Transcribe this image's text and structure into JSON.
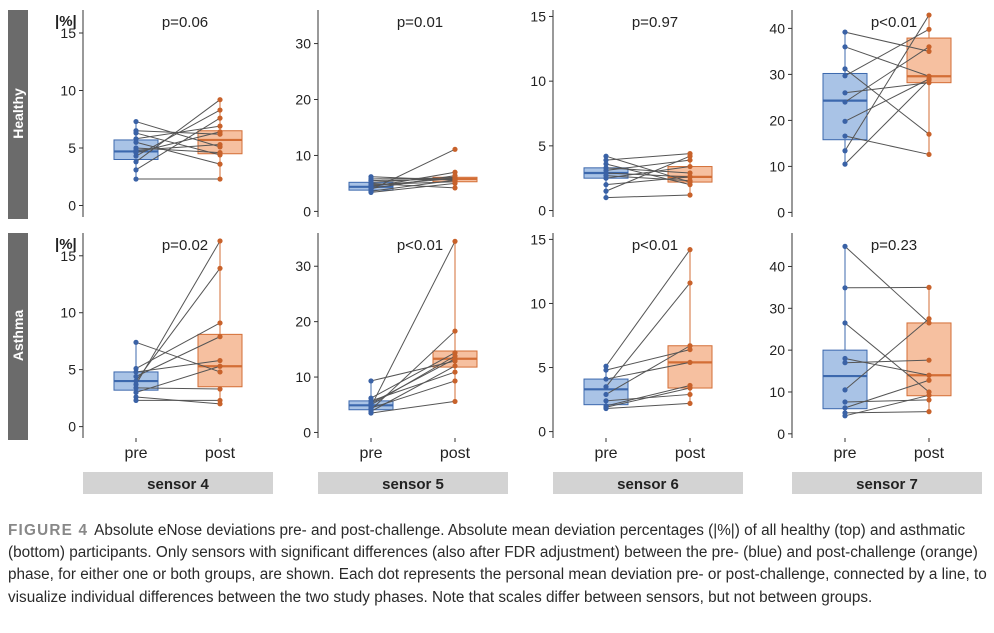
{
  "figure": {
    "row_labels": [
      "Healthy",
      "Asthma"
    ],
    "y_unit_label": "|%|",
    "x_tick_labels": [
      "pre",
      "post"
    ],
    "colors": {
      "pre_fill": "#a9c3e6",
      "pre_stroke": "#3c68ad",
      "pre_point": "#3a62a6",
      "post_fill": "#f6c0a0",
      "post_stroke": "#d36e36",
      "post_point": "#c8622b",
      "pair_line": "#555555",
      "row_strip": "#6b6b6b",
      "sensor_strip": "#d3d3d3"
    }
  },
  "caption": {
    "label": "FIGURE 4",
    "text": "Absolute eNose deviations pre- and post-challenge. Absolute mean deviation percentages (|%|) of all healthy (top) and asthmatic (bottom) participants. Only sensors with significant differences (also after FDR adjustment) between the pre- (blue) and post-challenge (orange) phase, for either one or both groups, are shown. Each dot represents the personal mean deviation pre- or post-challenge, connected by a line, to visualize individual differences between the two study phases. Note that scales differ between sensors, but not between groups."
  },
  "chart_data": [
    {
      "type": "box",
      "sensor": "sensor 4",
      "group": "Healthy",
      "pvalue": "p=0.06",
      "show_unit_label": true,
      "ylim": [
        -1,
        17
      ],
      "yticks": [
        0,
        5,
        10,
        15
      ],
      "pre": {
        "q1": 4.0,
        "median": 4.7,
        "q3": 5.7,
        "whisker_low": 2.3,
        "whisker_high": 7.3
      },
      "post": {
        "q1": 4.5,
        "median": 5.7,
        "q3": 6.5,
        "whisker_low": 2.3,
        "whisker_high": 9.2
      },
      "pairs": [
        [
          7.3,
          5.1
        ],
        [
          6.5,
          6.2
        ],
        [
          6.3,
          4.4
        ],
        [
          5.8,
          6.9
        ],
        [
          5.5,
          3.6
        ],
        [
          5.0,
          4.6
        ],
        [
          4.8,
          5.3
        ],
        [
          4.6,
          6.4
        ],
        [
          4.3,
          8.3
        ],
        [
          3.8,
          9.2
        ],
        [
          3.1,
          7.6
        ],
        [
          2.3,
          2.3
        ]
      ]
    },
    {
      "type": "box",
      "sensor": "sensor 5",
      "group": "Healthy",
      "pvalue": "p=0.01",
      "show_unit_label": false,
      "ylim": [
        -1,
        36
      ],
      "yticks": [
        0,
        10,
        20,
        30
      ],
      "pre": {
        "q1": 3.8,
        "median": 4.4,
        "q3": 5.2,
        "whisker_low": 3.4,
        "whisker_high": 6.2
      },
      "post": {
        "q1": 5.3,
        "median": 5.8,
        "q3": 6.1,
        "whisker_low": 4.2,
        "whisker_high": 7.0
      },
      "pairs": [
        [
          6.2,
          5.6
        ],
        [
          5.8,
          6.0
        ],
        [
          5.5,
          5.8
        ],
        [
          5.2,
          6.1
        ],
        [
          5.0,
          4.2
        ],
        [
          4.8,
          5.3
        ],
        [
          4.6,
          5.9
        ],
        [
          4.4,
          7.0
        ],
        [
          4.1,
          6.4
        ],
        [
          3.9,
          11.1
        ],
        [
          3.6,
          5.6
        ],
        [
          3.4,
          5.0
        ]
      ]
    },
    {
      "type": "box",
      "sensor": "sensor 6",
      "group": "Healthy",
      "pvalue": "p=0.97",
      "show_unit_label": false,
      "ylim": [
        -0.5,
        15.5
      ],
      "yticks": [
        0,
        5,
        10,
        15
      ],
      "pre": {
        "q1": 2.5,
        "median": 2.9,
        "q3": 3.3,
        "whisker_low": 1.0,
        "whisker_high": 4.2
      },
      "post": {
        "q1": 2.2,
        "median": 2.6,
        "q3": 3.4,
        "whisker_low": 1.0,
        "whisker_high": 4.4
      },
      "pairs": [
        [
          4.2,
          2.2
        ],
        [
          3.9,
          4.4
        ],
        [
          3.6,
          2.0
        ],
        [
          3.3,
          2.9
        ],
        [
          3.1,
          3.9
        ],
        [
          2.9,
          2.6
        ],
        [
          2.7,
          2.3
        ],
        [
          2.5,
          3.4
        ],
        [
          2.0,
          2.6
        ],
        [
          1.5,
          4.2
        ],
        [
          1.0,
          1.2
        ]
      ]
    },
    {
      "type": "box",
      "sensor": "sensor 7",
      "group": "Healthy",
      "pvalue": "p<0.01",
      "show_unit_label": false,
      "ylim": [
        -1,
        44
      ],
      "yticks": [
        0,
        10,
        20,
        30,
        40
      ],
      "pre": {
        "q1": 15.8,
        "median": 24.3,
        "q3": 30.2,
        "whisker_low": 10.5,
        "whisker_high": 39.2
      },
      "post": {
        "q1": 28.2,
        "median": 29.6,
        "q3": 37.9,
        "whisker_low": 12.6,
        "whisker_high": 42.9
      },
      "pairs": [
        [
          39.2,
          35.0
        ],
        [
          36.0,
          29.6
        ],
        [
          31.2,
          17.0
        ],
        [
          29.7,
          39.8
        ],
        [
          26.0,
          28.2
        ],
        [
          24.0,
          36.0
        ],
        [
          19.8,
          29.0
        ],
        [
          16.6,
          12.6
        ],
        [
          13.4,
          42.9
        ],
        [
          10.5,
          28.8
        ]
      ]
    },
    {
      "type": "box",
      "sensor": "sensor 4",
      "group": "Asthma",
      "pvalue": "p=0.02",
      "show_unit_label": true,
      "ylim": [
        -1,
        17
      ],
      "yticks": [
        0,
        5,
        10,
        15
      ],
      "pre": {
        "q1": 3.2,
        "median": 4.0,
        "q3": 4.8,
        "whisker_low": 2.3,
        "whisker_high": 7.4
      },
      "post": {
        "q1": 3.5,
        "median": 5.3,
        "q3": 8.1,
        "whisker_low": 2.0,
        "whisker_high": 16.3
      },
      "pairs": [
        [
          7.4,
          4.8
        ],
        [
          5.1,
          9.1
        ],
        [
          4.8,
          5.8
        ],
        [
          4.4,
          7.9
        ],
        [
          4.0,
          13.9
        ],
        [
          3.7,
          16.3
        ],
        [
          3.4,
          3.3
        ],
        [
          3.0,
          5.3
        ],
        [
          2.6,
          2.0
        ],
        [
          2.3,
          2.3
        ]
      ]
    },
    {
      "type": "box",
      "sensor": "sensor 5",
      "group": "Asthma",
      "pvalue": "p<0.01",
      "show_unit_label": false,
      "ylim": [
        -1,
        36
      ],
      "yticks": [
        0,
        10,
        20,
        30
      ],
      "pre": {
        "q1": 4.1,
        "median": 4.9,
        "q3": 5.7,
        "whisker_low": 3.5,
        "whisker_high": 9.3
      },
      "post": {
        "q1": 11.8,
        "median": 13.3,
        "q3": 14.7,
        "whisker_low": 5.6,
        "whisker_high": 34.5
      },
      "pairs": [
        [
          9.3,
          12.9
        ],
        [
          6.2,
          14.4
        ],
        [
          5.7,
          10.9
        ],
        [
          5.3,
          13.3
        ],
        [
          5.0,
          13.8
        ],
        [
          4.7,
          34.5
        ],
        [
          4.4,
          9.3
        ],
        [
          4.1,
          18.3
        ],
        [
          3.8,
          12.0
        ],
        [
          3.5,
          5.6
        ]
      ]
    },
    {
      "type": "box",
      "sensor": "sensor 6",
      "group": "Asthma",
      "pvalue": "p<0.01",
      "show_unit_label": false,
      "ylim": [
        -0.5,
        15.5
      ],
      "yticks": [
        0,
        5,
        10,
        15
      ],
      "pre": {
        "q1": 2.1,
        "median": 3.3,
        "q3": 4.1,
        "whisker_low": 1.8,
        "whisker_high": 5.1
      },
      "post": {
        "q1": 3.4,
        "median": 5.4,
        "q3": 6.7,
        "whisker_low": 2.2,
        "whisker_high": 14.2
      },
      "pairs": [
        [
          5.1,
          14.2
        ],
        [
          4.8,
          6.4
        ],
        [
          4.1,
          5.4
        ],
        [
          3.5,
          11.6
        ],
        [
          2.9,
          6.7
        ],
        [
          2.4,
          2.9
        ],
        [
          2.0,
          3.6
        ],
        [
          1.9,
          3.4
        ],
        [
          1.8,
          2.2
        ]
      ]
    },
    {
      "type": "box",
      "sensor": "sensor 7",
      "group": "Asthma",
      "pvalue": "p=0.23",
      "show_unit_label": false,
      "ylim": [
        -1,
        48
      ],
      "yticks": [
        0,
        10,
        20,
        30,
        40
      ],
      "pre": {
        "q1": 6.0,
        "median": 13.8,
        "q3": 20.0,
        "whisker_low": 4.3,
        "whisker_high": 44.8
      },
      "post": {
        "q1": 9.1,
        "median": 14.0,
        "q3": 26.5,
        "whisker_low": 5.3,
        "whisker_high": 35.0
      },
      "pairs": [
        [
          44.8,
          26.5
        ],
        [
          34.9,
          35.0
        ],
        [
          26.5,
          10.0
        ],
        [
          18.0,
          14.0
        ],
        [
          17.0,
          17.6
        ],
        [
          10.5,
          27.5
        ],
        [
          7.6,
          8.1
        ],
        [
          6.2,
          12.8
        ],
        [
          5.0,
          5.3
        ],
        [
          4.3,
          9.2
        ]
      ]
    }
  ]
}
